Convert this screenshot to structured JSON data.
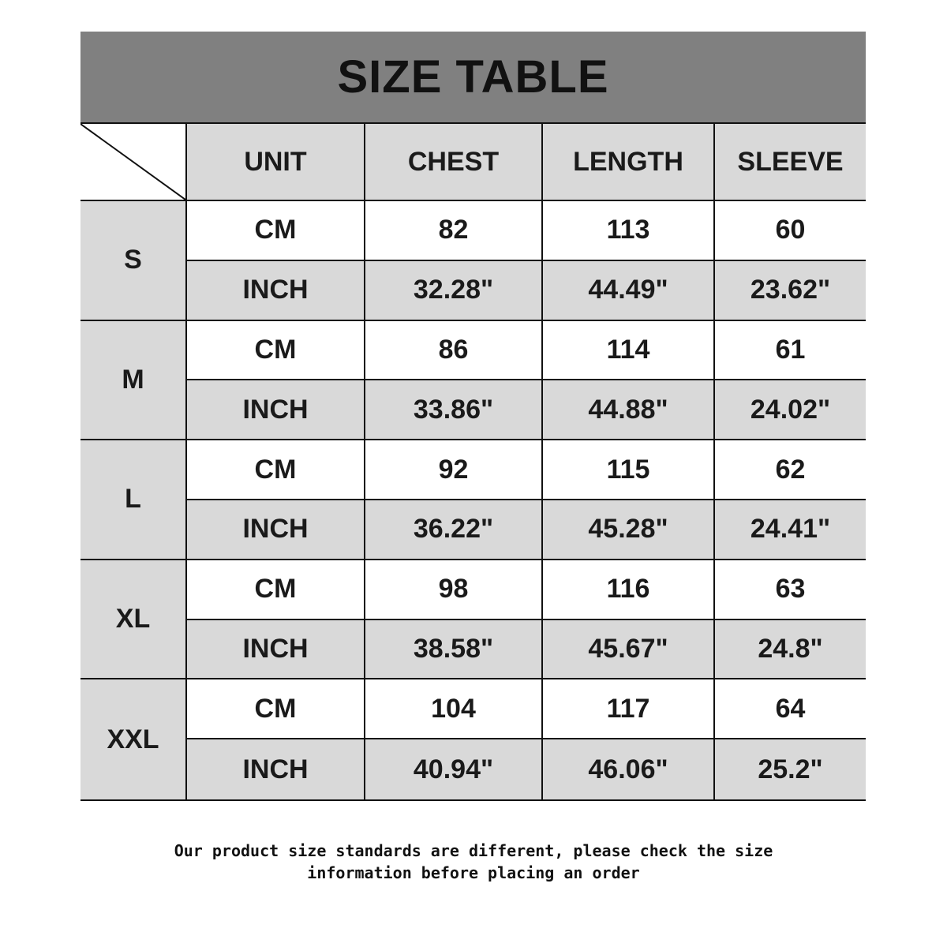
{
  "title": "SIZE TABLE",
  "headers": [
    "UNIT",
    "CHEST",
    "LENGTH",
    "SLEEVE"
  ],
  "rows": [
    {
      "size": "S",
      "cm": [
        "CM",
        "82",
        "113",
        "60"
      ],
      "inch": [
        "INCH",
        "32.28\"",
        "44.49\"",
        "23.62\""
      ]
    },
    {
      "size": "M",
      "cm": [
        "CM",
        "86",
        "114",
        "61"
      ],
      "inch": [
        "INCH",
        "33.86\"",
        "44.88\"",
        "24.02\""
      ]
    },
    {
      "size": "L",
      "cm": [
        "CM",
        "92",
        "115",
        "62"
      ],
      "inch": [
        "INCH",
        "36.22\"",
        "45.28\"",
        "24.41\""
      ]
    },
    {
      "size": "XL",
      "cm": [
        "CM",
        "98",
        "116",
        "63"
      ],
      "inch": [
        "INCH",
        "38.58\"",
        "45.67\"",
        "24.8\""
      ]
    },
    {
      "size": "XXL",
      "cm": [
        "CM",
        "104",
        "117",
        "64"
      ],
      "inch": [
        "INCH",
        "40.94\"",
        "46.06\"",
        "25.2\""
      ]
    }
  ],
  "note": {
    "line1": "Our product size standards are different, please check the size",
    "line2": "information before placing an order"
  },
  "colors": {
    "title_band": "#808080",
    "gray_cell": "#d9d9d9",
    "white_cell": "#ffffff"
  }
}
